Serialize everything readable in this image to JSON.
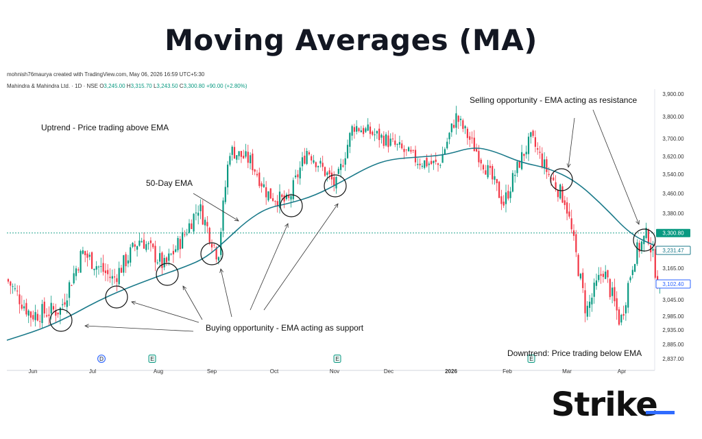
{
  "title": "Moving Averages (MA)",
  "credit": "mohnish76maurya created with TradingView.com, May 06, 2026 16:59 UTC+5:30",
  "ohlc": {
    "symbol": "Mahindra & Mahindra Ltd. · 1D · NSE",
    "o_label": "O",
    "o": "3,245.00",
    "h_label": "H",
    "h": "3,315.70",
    "l_label": "L",
    "l": "3,243.50",
    "c_label": "C",
    "c": "3,300.80",
    "change": "+90.00 (+2.80%)"
  },
  "annotations": {
    "uptrend": "Uptrend - Price trading above EMA",
    "ema": "50-Day EMA",
    "selling": "Selling opportunity - EMA acting as resistance",
    "buying": "Buying opportunity - EMA acting as support",
    "downtrend": "Downtrend: Price trading below EMA"
  },
  "brand": "Strike",
  "colors": {
    "up": "#089981",
    "down": "#f23645",
    "ema": "#1b7a8a",
    "price_tag": "#089981",
    "ema_tag": "#1b7a8a",
    "tag3": "#2962ff"
  },
  "chart_data": {
    "type": "candlestick",
    "y_ticks": [
      "3,900.00",
      "3,800.00",
      "3,700.00",
      "3,620.00",
      "3,540.00",
      "3,460.00",
      "3,380.00",
      "3,300.00",
      "3,231.47",
      "3,165.00",
      "3,102.40",
      "3,045.00",
      "2,985.00",
      "2,935.00",
      "2,885.00",
      "2,837.00"
    ],
    "y_tick_values": [
      3900,
      3800,
      3700,
      3620,
      3540,
      3460,
      3380,
      3300,
      3231.47,
      3165,
      3102.4,
      3045,
      2985,
      2935,
      2885,
      2837
    ],
    "ylim": [
      2837,
      3900
    ],
    "x_ticks": [
      "Jun",
      "Jul",
      "Aug",
      "Sep",
      "Oct",
      "Nov",
      "Dec",
      "2026",
      "Feb",
      "Mar",
      "Apr"
    ],
    "price_labels": [
      {
        "text": "3,300.80",
        "value": 3300.8,
        "kind": "price"
      },
      {
        "text": "3,231.47",
        "value": 3231.47,
        "kind": "ema"
      },
      {
        "text": "3,102.40",
        "value": 3102.4,
        "kind": "other"
      }
    ],
    "events": [
      {
        "label": "D",
        "month": "Jul"
      },
      {
        "label": "E",
        "month": "Aug"
      },
      {
        "label": "E",
        "month": "Nov"
      },
      {
        "label": "E",
        "month": "Feb"
      }
    ],
    "series": [
      {
        "name": "50-Day EMA",
        "values": [
          2920,
          2990,
          3110,
          3180,
          3320,
          3440,
          3500,
          3590,
          3610,
          3650,
          3540,
          3420,
          3231.47
        ]
      },
      {
        "name": "Price",
        "values": [
          3120,
          3020,
          3190,
          3250,
          3410,
          3680,
          3440,
          3500,
          3690,
          3760,
          3600,
          3560,
          3380,
          2980,
          3240,
          3300.8
        ]
      }
    ]
  }
}
